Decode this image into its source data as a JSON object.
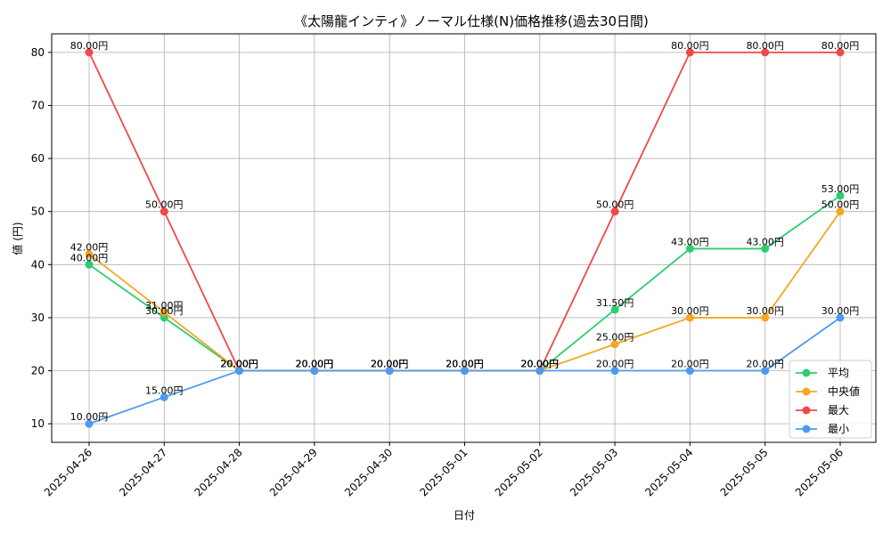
{
  "chart_data": {
    "type": "line",
    "title": "《太陽龍インティ》ノーマル仕様(N)価格推移(過去30日間)",
    "xlabel": "日付",
    "ylabel": "値 (円)",
    "categories": [
      "2025-04-26",
      "2025-04-27",
      "2025-04-28",
      "2025-04-29",
      "2025-04-30",
      "2025-05-01",
      "2025-05-02",
      "2025-05-03",
      "2025-05-04",
      "2025-05-05",
      "2025-05-06"
    ],
    "yticks": [
      10,
      20,
      30,
      40,
      50,
      60,
      70,
      80
    ],
    "ylim": [
      6.5,
      83.5
    ],
    "grid": true,
    "legend_position": "lower-right",
    "series": [
      {
        "name": "平均",
        "color": "#2ecc71",
        "values": [
          40,
          30,
          20,
          20,
          20,
          20,
          20,
          31.5,
          43,
          43,
          53
        ],
        "labels": [
          "40.00円",
          "30.00円",
          "20.00円",
          "20.00円",
          "20.00円",
          "20.00円",
          "20.00円",
          "31.50円",
          "43.00円",
          "43.00円",
          "53.00円"
        ]
      },
      {
        "name": "中央値",
        "color": "#f5a623",
        "values": [
          42,
          31,
          20,
          20,
          20,
          20,
          20,
          25,
          30,
          30,
          50
        ],
        "labels": [
          "42.00円",
          "31.00円",
          "20.00円",
          "20.00円",
          "20.00円",
          "20.00円",
          "20.00円",
          "25.00円",
          "30.00円",
          "30.00円",
          "50.00円"
        ]
      },
      {
        "name": "最大",
        "color": "#f04848",
        "values": [
          80,
          50,
          20,
          20,
          20,
          20,
          20,
          50,
          80,
          80,
          80
        ],
        "labels": [
          "80.00円",
          "50.00円",
          "20.00円",
          "20.00円",
          "20.00円",
          "20.00円",
          "20.00円",
          "50.00円",
          "80.00円",
          "80.00円",
          "80.00円"
        ]
      },
      {
        "name": "最小",
        "color": "#4c9bf0",
        "values": [
          10,
          15,
          20,
          20,
          20,
          20,
          20,
          20,
          20,
          20,
          30
        ],
        "labels": [
          "10.00円",
          "15.00円",
          "20.00円",
          "20.00円",
          "20.00円",
          "20.00円",
          "20.00円",
          "20.00円",
          "20.00円",
          "20.00円",
          "30.00円"
        ]
      }
    ]
  }
}
